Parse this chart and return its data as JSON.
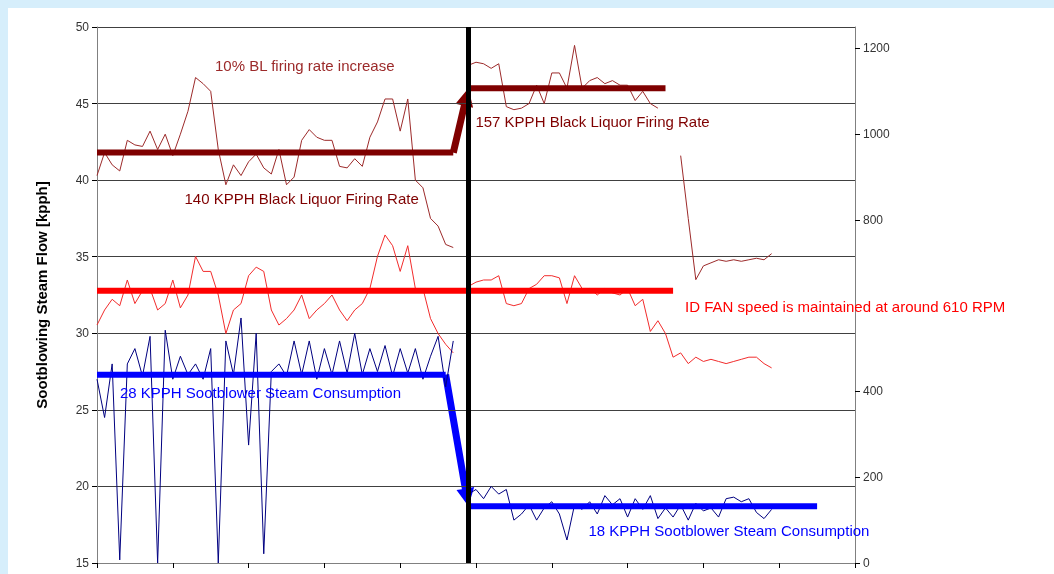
{
  "chart_data": {
    "type": "line",
    "ylabel": "Sootblowing Steam Flow [kpph]",
    "annotations": [
      "10% BL firing rate increase"
    ],
    "categories": [
      null,
      null,
      null,
      null,
      null,
      null,
      null,
      null,
      null,
      null,
      null,
      null,
      null,
      null,
      null,
      null,
      null,
      null,
      null,
      null,
      null,
      null,
      null,
      null,
      null,
      null,
      null,
      null,
      null,
      null,
      null,
      null,
      null,
      null,
      null,
      null,
      null,
      null,
      null,
      null,
      null,
      null,
      null,
      null,
      null,
      null,
      null,
      null,
      null,
      null,
      null,
      null,
      null,
      null,
      null,
      null,
      null,
      null,
      null,
      null,
      null,
      null,
      null,
      null,
      null,
      null,
      null,
      null,
      null,
      null,
      null,
      null,
      null,
      null,
      null,
      null,
      null,
      null,
      null,
      null,
      null,
      null,
      null,
      null,
      null,
      null,
      null,
      null,
      null,
      null,
      null,
      null,
      null,
      null,
      null,
      null,
      null,
      null,
      null,
      null,
      null
    ],
    "ylim": [
      15,
      50
    ],
    "yticks": [
      15,
      20,
      25,
      30,
      35,
      40,
      45,
      50
    ],
    "y2lim": [
      0,
      1250
    ],
    "y2ticks": [
      0,
      200,
      400,
      800,
      1000,
      1200
    ],
    "grid": "y",
    "series": [
      {
        "color": "#9c2a2a",
        "values": [
          40.3,
          41.8,
          41.0,
          40.6,
          42.6,
          42.3,
          42.2,
          43.2,
          42.0,
          43.0,
          41.6,
          43.0,
          44.5,
          46.7,
          46.3,
          45.8,
          42.0,
          39.7,
          41.0,
          40.3,
          41.2,
          41.7,
          40.8,
          40.4,
          42.0,
          39.7,
          40.2,
          42.6,
          43.3,
          42.8,
          42.6,
          42.6,
          40.9,
          40.8,
          41.4,
          40.9,
          42.8,
          43.8,
          45.3,
          45.3,
          43.2,
          45.3,
          40.0,
          39.5,
          37.5,
          37.0,
          35.8,
          35.6,
          null,
          null,
          null,
          null,
          null,
          null,
          null,
          null,
          null,
          null,
          null,
          null,
          null,
          null,
          null,
          null,
          null,
          null,
          null,
          null,
          null,
          null,
          null,
          null,
          null,
          null,
          null,
          null,
          null,
          null,
          null,
          null,
          null,
          null,
          null,
          null,
          null,
          null,
          null,
          null,
          null,
          null,
          null,
          null,
          null,
          null,
          null,
          null,
          null,
          null,
          null,
          null,
          null
        ]
      },
      {
        "color": "#9c2a2a",
        "values": [
          null,
          null,
          null,
          null,
          null,
          null,
          null,
          null,
          null,
          null,
          null,
          null,
          null,
          null,
          null,
          null,
          null,
          null,
          null,
          null,
          null,
          null,
          null,
          null,
          null,
          null,
          null,
          null,
          null,
          null,
          null,
          null,
          null,
          null,
          null,
          null,
          null,
          null,
          null,
          null,
          null,
          null,
          null,
          null,
          null,
          null,
          null,
          null,
          null,
          47.5,
          47.7,
          47.6,
          47.3,
          47.6,
          44.8,
          44.6,
          44.7,
          45.0,
          46.2,
          45.0,
          47.0,
          47.0,
          46.0,
          48.8,
          46.0,
          46.5,
          46.7,
          46.3,
          46.5,
          46.2,
          46.2,
          45.2,
          45.8,
          45.0,
          44.7,
          null,
          null,
          null,
          null,
          null,
          null,
          null,
          null,
          null,
          null,
          null,
          null,
          null,
          null,
          null,
          null,
          null,
          null,
          null,
          null,
          null,
          null,
          null,
          null,
          null,
          null
        ]
      },
      {
        "color": "#9c2a2a",
        "values": [
          null,
          null,
          null,
          null,
          null,
          null,
          null,
          null,
          null,
          null,
          null,
          null,
          null,
          null,
          null,
          null,
          null,
          null,
          null,
          null,
          null,
          null,
          null,
          null,
          null,
          null,
          null,
          null,
          null,
          null,
          null,
          null,
          null,
          null,
          null,
          null,
          null,
          null,
          null,
          null,
          null,
          null,
          null,
          null,
          null,
          null,
          null,
          null,
          null,
          null,
          null,
          null,
          null,
          null,
          null,
          null,
          null,
          null,
          null,
          null,
          null,
          null,
          null,
          null,
          null,
          null,
          null,
          null,
          null,
          null,
          null,
          null,
          null,
          null,
          null,
          null,
          null,
          41.6,
          37.5,
          33.5,
          34.4,
          34.6,
          34.8,
          34.7,
          34.8,
          34.7,
          34.8,
          34.9,
          34.8,
          35.2,
          null,
          null,
          null,
          null,
          null,
          null,
          null,
          null,
          null,
          null,
          null
        ]
      },
      {
        "color": "#f22c2c",
        "axis": "y2",
        "values": [
          555,
          590,
          615,
          600,
          660,
          605,
          635,
          640,
          590,
          605,
          660,
          595,
          625,
          715,
          680,
          680,
          625,
          535,
          590,
          605,
          670,
          690,
          680,
          590,
          555,
          570,
          590,
          625,
          570,
          590,
          605,
          625,
          590,
          565,
          590,
          605,
          640,
          715,
          765,
          740,
          680,
          740,
          640,
          640,
          570,
          535,
          510,
          490,
          null,
          null,
          null,
          null,
          null,
          null,
          null,
          null,
          null,
          null,
          null,
          null,
          null,
          null,
          null,
          null,
          null,
          null,
          null,
          null,
          null,
          null,
          null,
          null,
          null,
          null,
          null,
          null,
          null,
          null,
          null,
          null,
          null,
          null,
          null,
          null,
          null,
          null,
          null,
          null,
          null,
          null,
          null,
          null,
          null,
          null,
          null,
          null,
          null,
          null,
          null,
          null,
          null
        ]
      },
      {
        "color": "#f22c2c",
        "axis": "y2",
        "values": [
          null,
          null,
          null,
          null,
          null,
          null,
          null,
          null,
          null,
          null,
          null,
          null,
          null,
          null,
          null,
          null,
          null,
          null,
          null,
          null,
          null,
          null,
          null,
          null,
          null,
          null,
          null,
          null,
          null,
          null,
          null,
          null,
          null,
          null,
          null,
          null,
          null,
          null,
          null,
          null,
          null,
          null,
          null,
          null,
          null,
          null,
          null,
          null,
          null,
          645,
          655,
          660,
          660,
          670,
          605,
          600,
          605,
          640,
          650,
          670,
          670,
          665,
          605,
          670,
          640,
          640,
          625,
          640,
          630,
          625,
          640,
          600,
          615,
          540,
          565,
          535,
          480,
          490,
          465,
          480,
          470,
          475,
          470,
          465,
          470,
          475,
          480,
          480,
          465,
          455,
          null,
          null,
          null,
          null,
          null,
          null,
          null,
          null,
          null,
          null,
          null
        ]
      },
      {
        "color": "#000080",
        "values": [
          27.0,
          24.5,
          28.0,
          15.2,
          28.0,
          29.0,
          27.2,
          29.8,
          15.0,
          30.2,
          27.0,
          28.5,
          27.3,
          28.0,
          27.0,
          29.0,
          15.0,
          29.5,
          27.3,
          31.0,
          22.7,
          30.0,
          15.6,
          27.5,
          28.0,
          27.2,
          29.5,
          27.3,
          29.5,
          27.0,
          29.0,
          27.3,
          29.5,
          27.4,
          30.0,
          27.3,
          29.0,
          27.5,
          29.2,
          27.2,
          29.0,
          27.4,
          29.0,
          27.0,
          28.5,
          29.8,
          26.5,
          29.5,
          null,
          null,
          null,
          null,
          null,
          null,
          null,
          null,
          null,
          null,
          null,
          null,
          null,
          null,
          null,
          null,
          null,
          null,
          null,
          null,
          null,
          null,
          null,
          null,
          null,
          null,
          null,
          null,
          null,
          null,
          null,
          null,
          null,
          null,
          null,
          null,
          null,
          null,
          null,
          null,
          null,
          null,
          null,
          null,
          null,
          null,
          null,
          null,
          null,
          null,
          null,
          null,
          null
        ]
      },
      {
        "color": "#000080",
        "values": [
          null,
          null,
          null,
          null,
          null,
          null,
          null,
          null,
          null,
          null,
          null,
          null,
          null,
          null,
          null,
          null,
          null,
          null,
          null,
          null,
          null,
          null,
          null,
          null,
          null,
          null,
          null,
          null,
          null,
          null,
          null,
          null,
          null,
          null,
          null,
          null,
          null,
          null,
          null,
          null,
          null,
          null,
          null,
          null,
          null,
          null,
          null,
          null,
          null,
          19.5,
          19.8,
          19.2,
          20.0,
          19.5,
          19.8,
          17.8,
          18.2,
          18.8,
          17.8,
          18.6,
          19.0,
          18.2,
          16.5,
          18.8,
          18.5,
          19.0,
          18.2,
          19.4,
          18.8,
          19.2,
          18.0,
          19.2,
          18.5,
          19.4,
          17.9,
          18.6,
          18.0,
          18.8,
          17.8,
          18.9,
          18.4,
          18.6,
          18.0,
          19.2,
          19.3,
          19.0,
          19.2,
          18.3,
          17.9,
          18.5,
          null,
          null,
          null,
          null,
          null,
          null,
          null,
          null,
          null,
          null,
          null
        ]
      },
      {
        "name": "140 KPPH Black Liquor Firing Rate",
        "color": "#7f0000",
        "values": [
          41.8,
          41.8,
          41.8,
          41.8,
          41.8,
          41.8,
          41.8,
          41.8,
          41.8,
          41.8,
          41.8,
          41.8,
          41.8,
          41.8,
          41.8,
          41.8,
          41.8,
          41.8,
          41.8,
          41.8,
          41.8,
          41.8,
          41.8,
          41.8,
          41.8,
          41.8,
          41.8,
          41.8,
          41.8,
          41.8,
          41.8,
          41.8,
          41.8,
          41.8,
          41.8,
          41.8,
          41.8,
          41.8,
          41.8,
          41.8,
          41.8,
          41.8,
          41.8,
          41.8,
          41.8,
          41.8,
          41.8,
          41.8,
          null,
          null,
          null,
          null,
          null,
          null,
          null,
          null,
          null,
          null,
          null,
          null,
          null,
          null,
          null,
          null,
          null,
          null,
          null,
          null,
          null,
          null,
          null,
          null,
          null,
          null,
          null,
          null,
          null,
          null,
          null,
          null,
          null,
          null,
          null,
          null,
          null,
          null,
          null,
          null,
          null,
          null,
          null,
          null,
          null,
          null,
          null,
          null,
          null,
          null,
          null,
          null,
          null
        ]
      },
      {
        "name": "157 KPPH Black Liquor Firing Rate",
        "color": "#7f0000",
        "values": [
          null,
          null,
          null,
          null,
          null,
          null,
          null,
          null,
          null,
          null,
          null,
          null,
          null,
          null,
          null,
          null,
          null,
          null,
          null,
          null,
          null,
          null,
          null,
          null,
          null,
          null,
          null,
          null,
          null,
          null,
          null,
          null,
          null,
          null,
          null,
          null,
          null,
          null,
          null,
          null,
          null,
          null,
          null,
          null,
          null,
          null,
          null,
          null,
          null,
          46.0,
          46.0,
          46.0,
          46.0,
          46.0,
          46.0,
          46.0,
          46.0,
          46.0,
          46.0,
          46.0,
          46.0,
          46.0,
          46.0,
          46.0,
          46.0,
          46.0,
          46.0,
          46.0,
          46.0,
          46.0,
          46.0,
          46.0,
          46.0,
          46.0,
          46.0,
          46.0,
          null,
          null,
          null,
          null,
          null,
          null,
          null,
          null,
          null,
          null,
          null,
          null,
          null,
          null,
          null,
          null,
          null,
          null,
          null,
          null,
          null,
          null,
          null,
          null,
          null
        ]
      },
      {
        "name": "ID FAN speed is maintained at around 610 RPM",
        "color": "#ff0000",
        "axis": "y2",
        "values": [
          635,
          635,
          635,
          635,
          635,
          635,
          635,
          635,
          635,
          635,
          635,
          635,
          635,
          635,
          635,
          635,
          635,
          635,
          635,
          635,
          635,
          635,
          635,
          635,
          635,
          635,
          635,
          635,
          635,
          635,
          635,
          635,
          635,
          635,
          635,
          635,
          635,
          635,
          635,
          635,
          635,
          635,
          635,
          635,
          635,
          635,
          635,
          635,
          635,
          635,
          635,
          635,
          635,
          635,
          635,
          635,
          635,
          635,
          635,
          635,
          635,
          635,
          635,
          635,
          635,
          635,
          635,
          635,
          635,
          635,
          635,
          635,
          635,
          635,
          635,
          635,
          635,
          null,
          null,
          null,
          null,
          null,
          null,
          null,
          null,
          null,
          null,
          null,
          null,
          null,
          null,
          null,
          null,
          null,
          null,
          null,
          null,
          null,
          null,
          null,
          null
        ]
      },
      {
        "name": "28 KPPH Sootblower Steam Consumption",
        "color": "#0000ff",
        "values": [
          27.3,
          27.3,
          27.3,
          27.3,
          27.3,
          27.3,
          27.3,
          27.3,
          27.3,
          27.3,
          27.3,
          27.3,
          27.3,
          27.3,
          27.3,
          27.3,
          27.3,
          27.3,
          27.3,
          27.3,
          27.3,
          27.3,
          27.3,
          27.3,
          27.3,
          27.3,
          27.3,
          27.3,
          27.3,
          27.3,
          27.3,
          27.3,
          27.3,
          27.3,
          27.3,
          27.3,
          27.3,
          27.3,
          27.3,
          27.3,
          27.3,
          27.3,
          27.3,
          27.3,
          27.3,
          27.3,
          27.3,
          null,
          null,
          null,
          null,
          null,
          null,
          null,
          null,
          null,
          null,
          null,
          null,
          null,
          null,
          null,
          null,
          null,
          null,
          null,
          null,
          null,
          null,
          null,
          null,
          null,
          null,
          null,
          null,
          null,
          null,
          null,
          null,
          null,
          null,
          null,
          null,
          null,
          null,
          null,
          null,
          null,
          null,
          null,
          null,
          null,
          null,
          null,
          null,
          null,
          null,
          null,
          null,
          null,
          null
        ]
      },
      {
        "name": "18 KPPH Sootblower Steam Consumption",
        "color": "#0000ff",
        "values": [
          null,
          null,
          null,
          null,
          null,
          null,
          null,
          null,
          null,
          null,
          null,
          null,
          null,
          null,
          null,
          null,
          null,
          null,
          null,
          null,
          null,
          null,
          null,
          null,
          null,
          null,
          null,
          null,
          null,
          null,
          null,
          null,
          null,
          null,
          null,
          null,
          null,
          null,
          null,
          null,
          null,
          null,
          null,
          null,
          null,
          null,
          null,
          null,
          null,
          18.7,
          18.7,
          18.7,
          18.7,
          18.7,
          18.7,
          18.7,
          18.7,
          18.7,
          18.7,
          18.7,
          18.7,
          18.7,
          18.7,
          18.7,
          18.7,
          18.7,
          18.7,
          18.7,
          18.7,
          18.7,
          18.7,
          18.7,
          18.7,
          18.7,
          18.7,
          18.7,
          18.7,
          18.7,
          18.7,
          18.7,
          18.7,
          18.7,
          18.7,
          18.7,
          18.7,
          18.7,
          18.7,
          18.7,
          18.7,
          18.7,
          18.7,
          18.7,
          18.7,
          18.7,
          18.7,
          18.7,
          null,
          null,
          null,
          null,
          null
        ]
      }
    ]
  }
}
